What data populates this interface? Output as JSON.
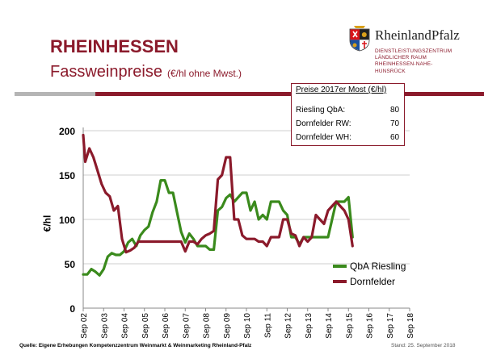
{
  "header": {
    "title": "RHEINHESSEN",
    "subtitle": "Fassweinpreise",
    "subtitle_unit": "(€/hl ohne Mwst.)"
  },
  "logo": {
    "name": "RheinlandPfalz",
    "org_lines": [
      "DIENSTLEISTUNGSZENTRUM",
      "LÄNDLICHER RAUM",
      "RHEINHESSEN-NAHE-",
      "HUNSRÜCK"
    ]
  },
  "price_box": {
    "title": "Preise 2017er Most (€/hl)",
    "rows": [
      {
        "label": "Riesling QbA:",
        "value": "80"
      },
      {
        "label": "Dornfelder RW:",
        "value": "70"
      },
      {
        "label": "Dornfelder WH:",
        "value": "60"
      }
    ]
  },
  "footer": {
    "source": "Quelle: Eigene Erhebungen Kompetenzzentrum Weinmarkt & Weinmarketing Rheinland-Pfalz",
    "date": "Stand: 25. September 2018"
  },
  "colors": {
    "riesling": "#3a8a1c",
    "dornfelder": "#8b1a2b",
    "accent": "#8b1a2b"
  },
  "chart_data": {
    "type": "line",
    "ylabel": "€/hl",
    "ylim": [
      0,
      200
    ],
    "yticks": [
      "0",
      "50",
      "100",
      "150",
      "200"
    ],
    "categories": [
      "Sep 02",
      "Sep 03",
      "Sep 04",
      "Sep 05",
      "Sep 06",
      "Sep 07",
      "Sep 08",
      "Sep 09",
      "Sep 10",
      "Sep 11",
      "Sep 12",
      "Sep 13",
      "Sep 14",
      "Sep 15",
      "Sep 16",
      "Sep 17",
      "Sep 18"
    ],
    "grid": true,
    "legend": "bottom-right",
    "series": [
      {
        "name": "QbA Riesling",
        "color": "#3a8a1c",
        "points": [
          [
            0,
            38
          ],
          [
            0.2,
            38
          ],
          [
            0.4,
            44
          ],
          [
            0.6,
            41
          ],
          [
            0.8,
            37
          ],
          [
            1.0,
            44
          ],
          [
            1.2,
            58
          ],
          [
            1.4,
            62
          ],
          [
            1.6,
            60
          ],
          [
            1.8,
            60
          ],
          [
            2.0,
            64
          ],
          [
            2.2,
            74
          ],
          [
            2.4,
            78
          ],
          [
            2.6,
            70
          ],
          [
            2.8,
            82
          ],
          [
            3.0,
            88
          ],
          [
            3.2,
            92
          ],
          [
            3.4,
            108
          ],
          [
            3.6,
            120
          ],
          [
            3.8,
            144
          ],
          [
            4.0,
            144
          ],
          [
            4.2,
            130
          ],
          [
            4.4,
            130
          ],
          [
            4.6,
            108
          ],
          [
            4.8,
            86
          ],
          [
            5.0,
            74
          ],
          [
            5.2,
            84
          ],
          [
            5.4,
            78
          ],
          [
            5.6,
            70
          ],
          [
            5.8,
            70
          ],
          [
            6.0,
            70
          ],
          [
            6.2,
            66
          ],
          [
            6.4,
            66
          ],
          [
            6.6,
            110
          ],
          [
            6.8,
            114
          ],
          [
            7.0,
            124
          ],
          [
            7.2,
            128
          ],
          [
            7.4,
            120
          ],
          [
            7.6,
            125
          ],
          [
            7.8,
            130
          ],
          [
            8.0,
            130
          ],
          [
            8.2,
            110
          ],
          [
            8.4,
            120
          ],
          [
            8.6,
            100
          ],
          [
            8.8,
            105
          ],
          [
            9.0,
            100
          ],
          [
            9.2,
            120
          ],
          [
            9.4,
            120
          ],
          [
            9.6,
            120
          ],
          [
            9.8,
            110
          ],
          [
            10.0,
            105
          ],
          [
            10.2,
            80
          ],
          [
            10.4,
            80
          ],
          [
            10.6,
            72
          ],
          [
            10.8,
            80
          ],
          [
            11.0,
            80
          ],
          [
            11.2,
            80
          ],
          [
            11.4,
            80
          ],
          [
            11.6,
            80
          ],
          [
            11.8,
            80
          ],
          [
            12.0,
            80
          ],
          [
            12.2,
            100
          ],
          [
            12.4,
            120
          ],
          [
            12.6,
            120
          ],
          [
            12.8,
            120
          ],
          [
            13.0,
            125
          ],
          [
            13.2,
            80
          ]
        ]
      },
      {
        "name": "Dornfelder",
        "color": "#8b1a2b",
        "points": [
          [
            0,
            195
          ],
          [
            0.1,
            165
          ],
          [
            0.3,
            180
          ],
          [
            0.5,
            170
          ],
          [
            0.7,
            155
          ],
          [
            0.9,
            140
          ],
          [
            1.1,
            130
          ],
          [
            1.3,
            126
          ],
          [
            1.5,
            110
          ],
          [
            1.7,
            115
          ],
          [
            1.9,
            78
          ],
          [
            2.1,
            63
          ],
          [
            2.3,
            65
          ],
          [
            2.5,
            68
          ],
          [
            2.7,
            75
          ],
          [
            3.0,
            75
          ],
          [
            3.5,
            75
          ],
          [
            4.0,
            75
          ],
          [
            4.5,
            75
          ],
          [
            4.8,
            75
          ],
          [
            5.0,
            64
          ],
          [
            5.2,
            75
          ],
          [
            5.4,
            75
          ],
          [
            5.6,
            72
          ],
          [
            5.8,
            78
          ],
          [
            6.0,
            82
          ],
          [
            6.2,
            84
          ],
          [
            6.4,
            87
          ],
          [
            6.6,
            145
          ],
          [
            6.8,
            150
          ],
          [
            7.0,
            170
          ],
          [
            7.2,
            170
          ],
          [
            7.4,
            100
          ],
          [
            7.6,
            100
          ],
          [
            7.8,
            82
          ],
          [
            8.0,
            78
          ],
          [
            8.2,
            78
          ],
          [
            8.4,
            78
          ],
          [
            8.6,
            75
          ],
          [
            8.8,
            75
          ],
          [
            9.0,
            70
          ],
          [
            9.2,
            80
          ],
          [
            9.4,
            80
          ],
          [
            9.6,
            80
          ],
          [
            9.8,
            100
          ],
          [
            10.0,
            100
          ],
          [
            10.2,
            84
          ],
          [
            10.4,
            82
          ],
          [
            10.6,
            70
          ],
          [
            10.8,
            80
          ],
          [
            11.0,
            75
          ],
          [
            11.2,
            80
          ],
          [
            11.4,
            105
          ],
          [
            11.6,
            100
          ],
          [
            11.8,
            95
          ],
          [
            12.0,
            110
          ],
          [
            12.2,
            115
          ],
          [
            12.4,
            120
          ],
          [
            12.6,
            115
          ],
          [
            12.8,
            110
          ],
          [
            13.0,
            100
          ],
          [
            13.2,
            70
          ]
        ]
      }
    ]
  }
}
